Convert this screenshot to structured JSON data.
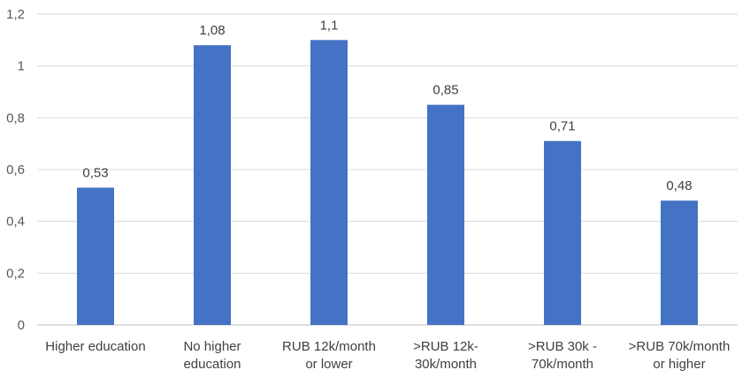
{
  "chart_data": {
    "type": "bar",
    "categories": [
      [
        "Higher education"
      ],
      [
        "No higher",
        "education"
      ],
      [
        "RUB 12k/month",
        "or lower"
      ],
      [
        ">RUB 12k-",
        "30k/month"
      ],
      [
        ">RUB 30k -",
        "70k/month"
      ],
      [
        ">RUB 70k/month",
        "or higher"
      ]
    ],
    "values": [
      0.53,
      1.08,
      1.1,
      0.85,
      0.71,
      0.48
    ],
    "data_labels": [
      "0,53",
      "1,08",
      "1,1",
      "0,85",
      "0,71",
      "0,48"
    ],
    "ylim": [
      0,
      1.2
    ],
    "yticks": [
      0,
      0.2,
      0.4,
      0.6,
      0.8,
      1,
      1.2
    ],
    "ytick_labels": [
      "0",
      "0,2",
      "0,4",
      "0,6",
      "0,8",
      "1",
      "1,2"
    ],
    "grid": true,
    "title": "",
    "xlabel": "",
    "ylabel": "",
    "colors": {
      "bar": "#4472C4",
      "grid": "#D9D9D9",
      "axis": "#BFBFBF"
    }
  }
}
